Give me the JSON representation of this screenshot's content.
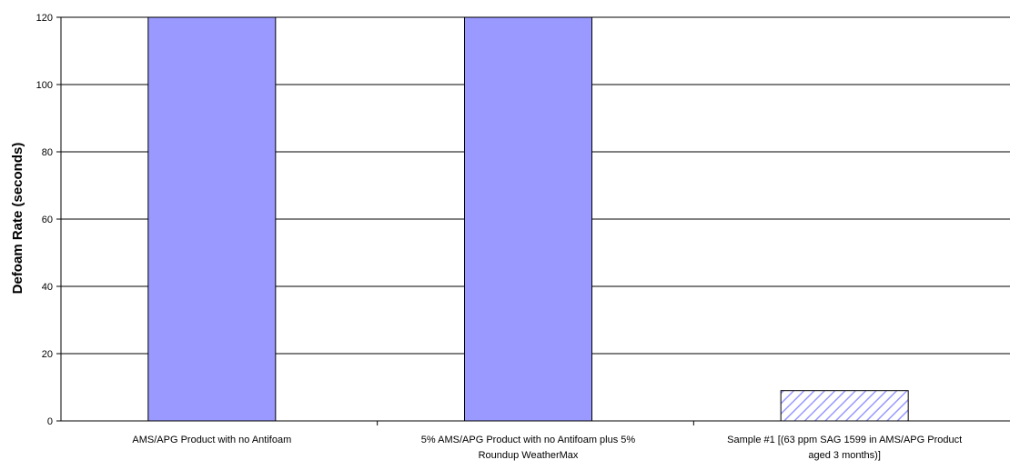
{
  "chart_data": {
    "type": "bar",
    "title": "",
    "xlabel": "",
    "ylabel": "Defoam Rate (seconds)",
    "ylim": [
      0,
      120
    ],
    "yticks": [
      0,
      20,
      40,
      60,
      80,
      100,
      120
    ],
    "grid": true,
    "legend": "none",
    "categories": [
      [
        "AMS/APG Product with no Antifoam"
      ],
      [
        "5% AMS/APG Product with no Antifoam plus 5%",
        "Roundup WeatherMax"
      ],
      [
        "Sample #1 [(63 ppm SAG 1599 in AMS/APG Product",
        "aged 3 months)]"
      ]
    ],
    "values": [
      120,
      120,
      9
    ],
    "bar_styles": [
      "solid",
      "solid",
      "hatched"
    ],
    "colors": {
      "bar_fill": "#9999ff",
      "bar_stroke": "#000000",
      "hatch_background": "#ffffff",
      "grid": "#000000",
      "axis": "#000000"
    }
  }
}
